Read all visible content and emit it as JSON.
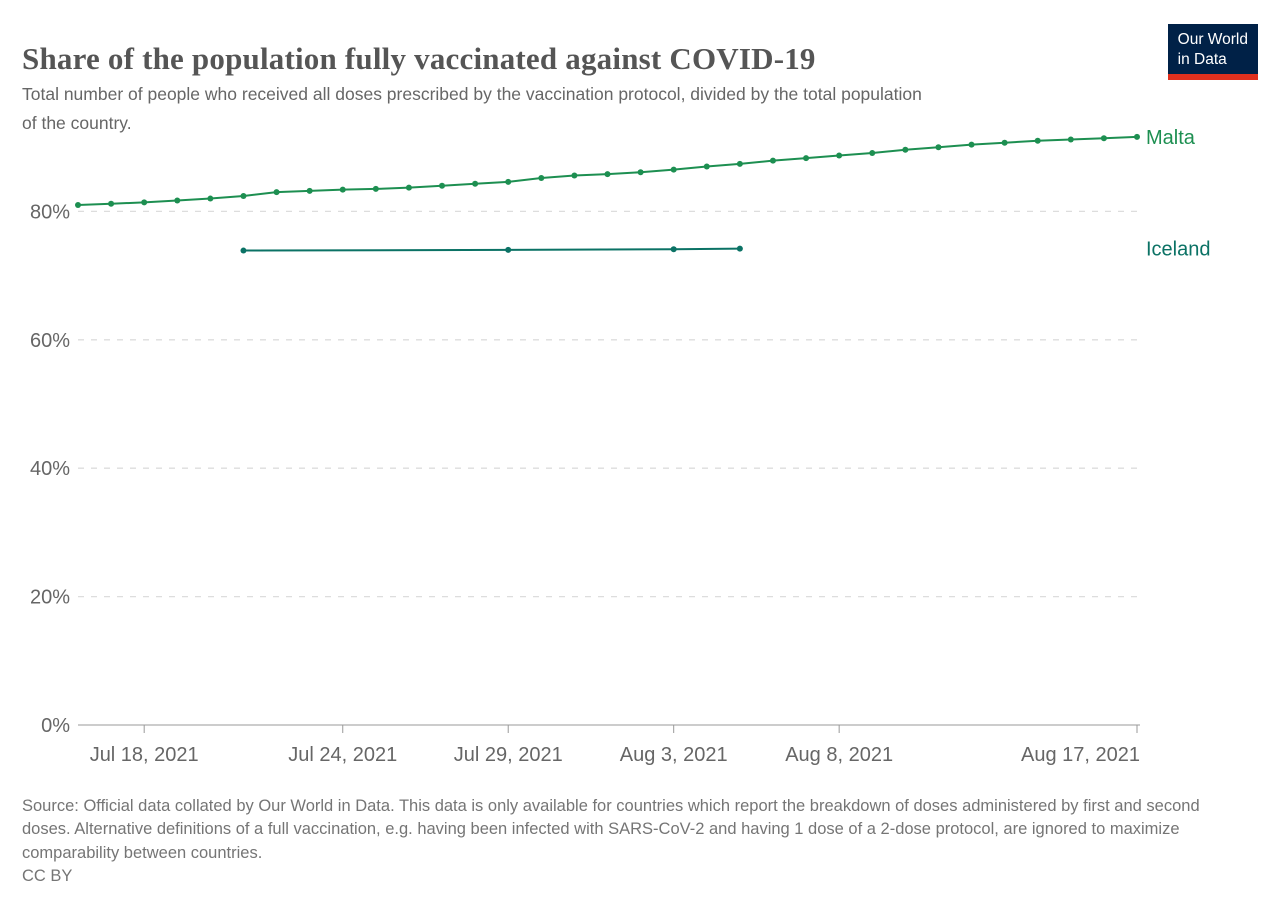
{
  "header": {
    "title": "Share of the population fully vaccinated against COVID-19",
    "subtitle": "Total number of people who received all doses prescribed by the vaccination protocol, divided by the total population of the country.",
    "logo": {
      "line1": "Our World",
      "line2": "in Data"
    }
  },
  "colors": {
    "malta": "#1d8f51",
    "iceland": "#0b7265",
    "grid": "#dddddd",
    "axis": "#999999",
    "tick_text": "#666666",
    "title_text": "#555555",
    "logo_bg": "#002147",
    "logo_accent": "#e0301e"
  },
  "chart_data": {
    "type": "line",
    "title": "Share of the population fully vaccinated against COVID-19",
    "xlabel": "",
    "ylabel": "",
    "grid": "dashed-horizontal",
    "legend_position": "right-end-labels",
    "year": "2021",
    "x_axis": {
      "start_date": "Jul 16, 2021",
      "end_date": "Aug 17, 2021",
      "unit": "day_index",
      "ticks": [
        {
          "label": "Jul 18, 2021",
          "i": 2
        },
        {
          "label": "Jul 24, 2021",
          "i": 8
        },
        {
          "label": "Jul 29, 2021",
          "i": 13
        },
        {
          "label": "Aug 3, 2021",
          "i": 18
        },
        {
          "label": "Aug 8, 2021",
          "i": 23
        },
        {
          "label": "Aug 17, 2021",
          "i": 32
        }
      ]
    },
    "y_axis": {
      "unit": "%",
      "ylim": [
        0,
        95
      ],
      "ticks": [
        0,
        20,
        40,
        60,
        80
      ],
      "tick_labels": [
        "0%",
        "20%",
        "40%",
        "60%",
        "80%"
      ]
    },
    "series": [
      {
        "name": "Malta",
        "color": "#1d8f51",
        "dates": [
          "Jul 16",
          "Jul 17",
          "Jul 18",
          "Jul 19",
          "Jul 20",
          "Jul 21",
          "Jul 22",
          "Jul 23",
          "Jul 24",
          "Jul 25",
          "Jul 26",
          "Jul 27",
          "Jul 28",
          "Jul 29",
          "Jul 30",
          "Jul 31",
          "Aug 1",
          "Aug 2",
          "Aug 3",
          "Aug 4",
          "Aug 5",
          "Aug 6",
          "Aug 7",
          "Aug 8",
          "Aug 9",
          "Aug 10",
          "Aug 11",
          "Aug 12",
          "Aug 13",
          "Aug 14",
          "Aug 15",
          "Aug 16",
          "Aug 17"
        ],
        "day_index": [
          0,
          1,
          2,
          3,
          4,
          5,
          6,
          7,
          8,
          9,
          10,
          11,
          12,
          13,
          14,
          15,
          16,
          17,
          18,
          19,
          20,
          21,
          22,
          23,
          24,
          25,
          26,
          27,
          28,
          29,
          30,
          31,
          32
        ],
        "values": [
          81.0,
          81.2,
          81.4,
          81.7,
          82.0,
          82.4,
          83.0,
          83.2,
          83.4,
          83.5,
          83.7,
          84.0,
          84.3,
          84.6,
          85.2,
          85.6,
          85.8,
          86.1,
          86.5,
          87.0,
          87.4,
          87.9,
          88.3,
          88.7,
          89.1,
          89.6,
          90.0,
          90.4,
          90.7,
          91.0,
          91.2,
          91.4,
          91.6
        ]
      },
      {
        "name": "Iceland",
        "color": "#0b7265",
        "dates": [
          "Jul 21",
          "Jul 29",
          "Aug 3",
          "Aug 5"
        ],
        "day_index": [
          5,
          13,
          18,
          20
        ],
        "values": [
          73.9,
          74.0,
          74.1,
          74.2
        ]
      }
    ]
  },
  "footer": {
    "source": "Source: Official data collated by Our World in Data. This data is only available for countries which report the breakdown of doses administered by first and second doses. Alternative definitions of a full vaccination, e.g. having been infected with SARS-CoV-2 and having 1 dose of a 2-dose protocol, are ignored to maximize comparability between countries.",
    "license": "CC BY"
  }
}
